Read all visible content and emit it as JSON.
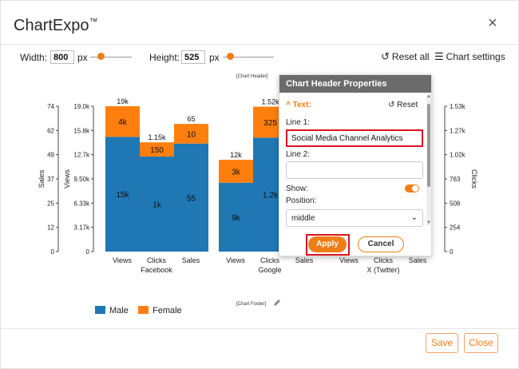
{
  "app": {
    "title": "ChartExpo",
    "trademark": "™",
    "close": "×"
  },
  "toolbar": {
    "width_label": "Width:",
    "width_value": "800",
    "width_unit": "px",
    "height_label": "Height:",
    "height_value": "525",
    "height_unit": "px",
    "reset_all": "Reset all",
    "chart_settings": "Chart settings"
  },
  "chart_data": {
    "type": "bar",
    "stacked": true,
    "header_placeholder": "[Chart Header]",
    "footer_placeholder": "[Chart Footer]",
    "groups": [
      {
        "name": "Facebook",
        "categories": [
          "Views",
          "Clicks",
          "Sales"
        ]
      },
      {
        "name": "Google",
        "categories": [
          "Views",
          "Clicks",
          "Sales"
        ]
      },
      {
        "name": "X (Twitter)",
        "categories": [
          "Views",
          "Clicks",
          "Sales"
        ]
      }
    ],
    "series": [
      {
        "name": "Male",
        "color": "#1f77b4",
        "values": [
          {
            "cat": "Facebook Views",
            "value": 15000,
            "label": "15k"
          },
          {
            "cat": "Facebook Clicks",
            "value": 1000,
            "label": "1k"
          },
          {
            "cat": "Facebook Sales",
            "value": 55,
            "label": "55"
          },
          {
            "cat": "Google Views",
            "value": 9000,
            "label": "9k"
          },
          {
            "cat": "Google Clicks",
            "value": 1200,
            "label": "1.2k"
          }
        ]
      },
      {
        "name": "Female",
        "color": "#ff7f0e",
        "values": [
          {
            "cat": "Facebook Views",
            "value": 4000,
            "label": "4k"
          },
          {
            "cat": "Facebook Clicks",
            "value": 150,
            "label": "150"
          },
          {
            "cat": "Facebook Sales",
            "value": 10,
            "label": "10"
          },
          {
            "cat": "Google Views",
            "value": 3000,
            "label": "3k"
          },
          {
            "cat": "Google Clicks",
            "value": 325,
            "label": "325"
          }
        ]
      }
    ],
    "totals": [
      "19k",
      "1.15k",
      "65",
      "12k",
      "1.52k"
    ],
    "axes": {
      "sales": {
        "label": "Sales",
        "ticks": [
          "74",
          "62",
          "49",
          "37",
          "25",
          "12",
          "0"
        ]
      },
      "views": {
        "label": "Views",
        "ticks": [
          "19.0k",
          "15.8k",
          "12.7k",
          "9.50k",
          "6.33k",
          "3.17k",
          "0"
        ]
      },
      "clicks": {
        "label": "Clicks",
        "ticks": [
          "1.53k",
          "1.27k",
          "1.02k",
          "763",
          "508",
          "254",
          "0"
        ]
      }
    },
    "legend": [
      {
        "name": "Male",
        "color": "#1f77b4"
      },
      {
        "name": "Female",
        "color": "#ff7f0e"
      }
    ],
    "legend_placement": "bottom-left"
  },
  "panel": {
    "title": "Chart Header Properties",
    "section": "Text:",
    "reset": "Reset",
    "line1_label": "Line 1:",
    "line1_value": "Social Media Channel Analytics",
    "line2_label": "Line 2:",
    "line2_value": "",
    "show_label": "Show:",
    "show_on": true,
    "position_label": "Position:",
    "position_value": "middle",
    "apply": "Apply",
    "cancel": "Cancel"
  },
  "footer": {
    "save": "Save",
    "close": "Close"
  },
  "colors": {
    "accent": "#f07e16",
    "male": "#1f77b4",
    "female": "#ff7f0e",
    "highlight": "#d9151f"
  }
}
